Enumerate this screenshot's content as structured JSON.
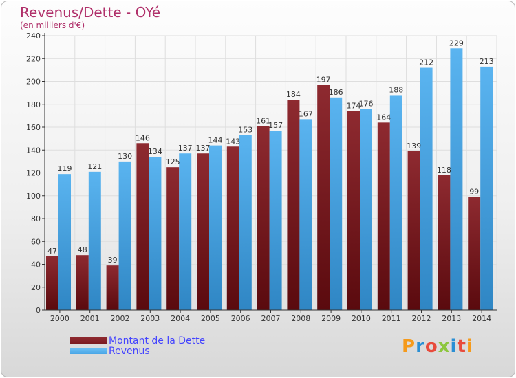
{
  "header": {
    "title": "Revenus/Dette - OYé",
    "subtitle": "(en milliers d'€)"
  },
  "legend": {
    "items": [
      {
        "label": "Montant de la Dette",
        "color": "#7a1a1f"
      },
      {
        "label": "Revenus",
        "color": "#4aa6e6"
      }
    ]
  },
  "logo": {
    "letters": [
      "P",
      "r",
      "o",
      "x",
      "i",
      "t",
      "i"
    ],
    "colors": [
      "#f59a1b",
      "#2a8fd4",
      "#e84b3c",
      "#8dc63f",
      "#2a8fd4",
      "#e84b3c",
      "#f59a1b"
    ]
  },
  "chart_data": {
    "type": "bar",
    "categories": [
      "2000",
      "2001",
      "2002",
      "2003",
      "2004",
      "2005",
      "2006",
      "2007",
      "2008",
      "2009",
      "2010",
      "2011",
      "2012",
      "2013",
      "2014"
    ],
    "series": [
      {
        "name": "Montant de la Dette",
        "color": "#7a1a1f",
        "values": [
          47,
          48,
          39,
          146,
          125,
          137,
          143,
          161,
          184,
          197,
          174,
          164,
          139,
          118,
          99
        ]
      },
      {
        "name": "Revenus",
        "color": "#4aa6e6",
        "values": [
          119,
          121,
          130,
          134,
          137,
          144,
          153,
          157,
          167,
          186,
          176,
          188,
          212,
          229,
          213
        ]
      }
    ],
    "yticks": [
      0,
      20,
      40,
      60,
      80,
      100,
      120,
      140,
      160,
      180,
      200,
      220,
      240
    ],
    "ylim": [
      0,
      240
    ],
    "grid": true,
    "legend_position": "bottom-left",
    "data_labels": true
  }
}
